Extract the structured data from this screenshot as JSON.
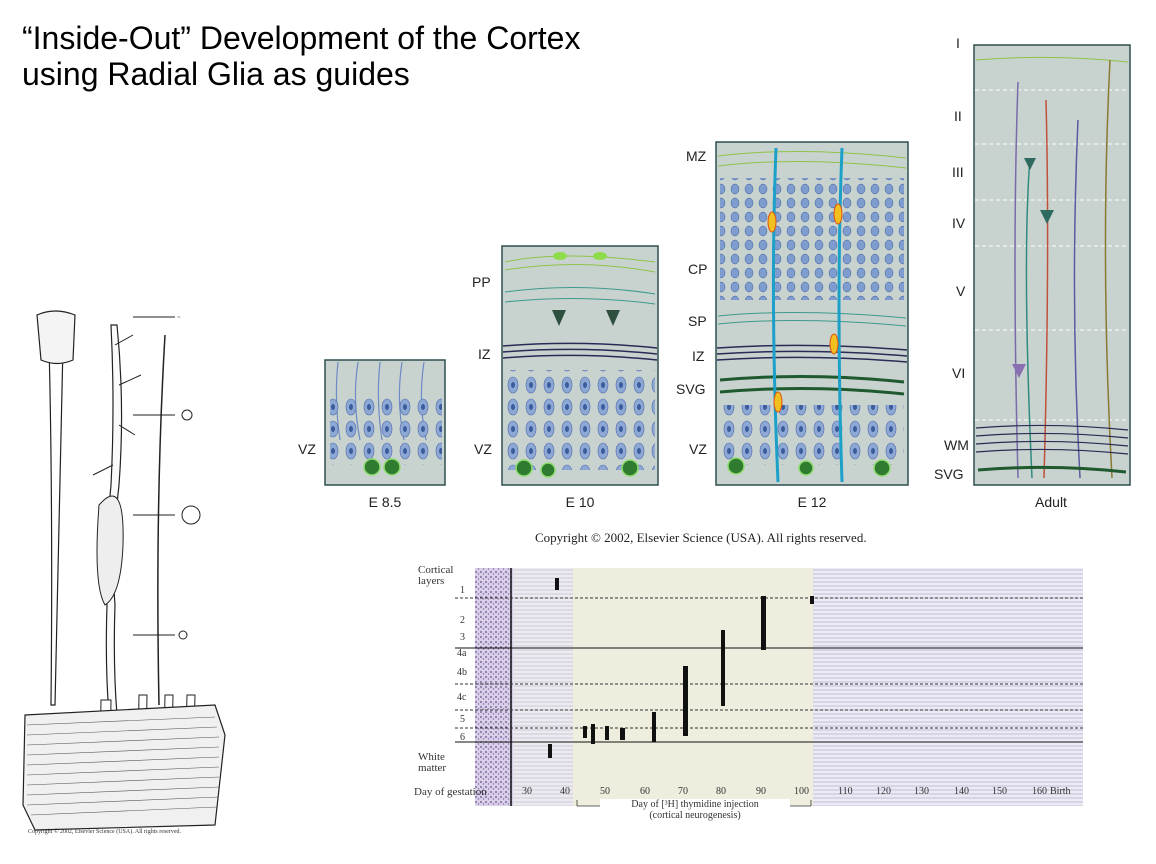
{
  "slide": {
    "title_line1": "“Inside-Out” Development of the Cortex",
    "title_line2": "using Radial Glia as guides"
  },
  "panels": {
    "e85": {
      "caption": "E 8.5",
      "labels": [
        "VZ"
      ]
    },
    "e10": {
      "caption": "E 10",
      "labels": [
        "PP",
        "IZ",
        "VZ"
      ]
    },
    "e12": {
      "caption": "E 12",
      "labels": [
        "MZ",
        "CP",
        "SP",
        "IZ",
        "SVG",
        "VZ"
      ]
    },
    "adult": {
      "caption": "Adult",
      "labels": [
        "I",
        "II",
        "III",
        "IV",
        "V",
        "VI",
        "WM",
        "SVG"
      ]
    },
    "copyright": "Copyright © 2002, Elsevier Science (USA). All rights reserved."
  },
  "left_drawing": {
    "copyright": "Copyright © 2002, Elsevier Science (USA). All rights reserved."
  },
  "neurogenesis_chart": {
    "layer_title": "Cortical layers",
    "layers": [
      "1",
      "2",
      "3",
      "4a",
      "4b",
      "4c",
      "5",
      "6",
      "White matter"
    ],
    "x_title": "Day of gestation",
    "x_ticks": [
      "30",
      "40",
      "50",
      "60",
      "70",
      "80",
      "90",
      "100",
      "110",
      "120",
      "130",
      "140",
      "150",
      "160",
      "Birth"
    ],
    "bracket_label_line1": "Day of [³H] thymidine injection",
    "bracket_label_line2": "(cortical neurogenesis)"
  }
}
